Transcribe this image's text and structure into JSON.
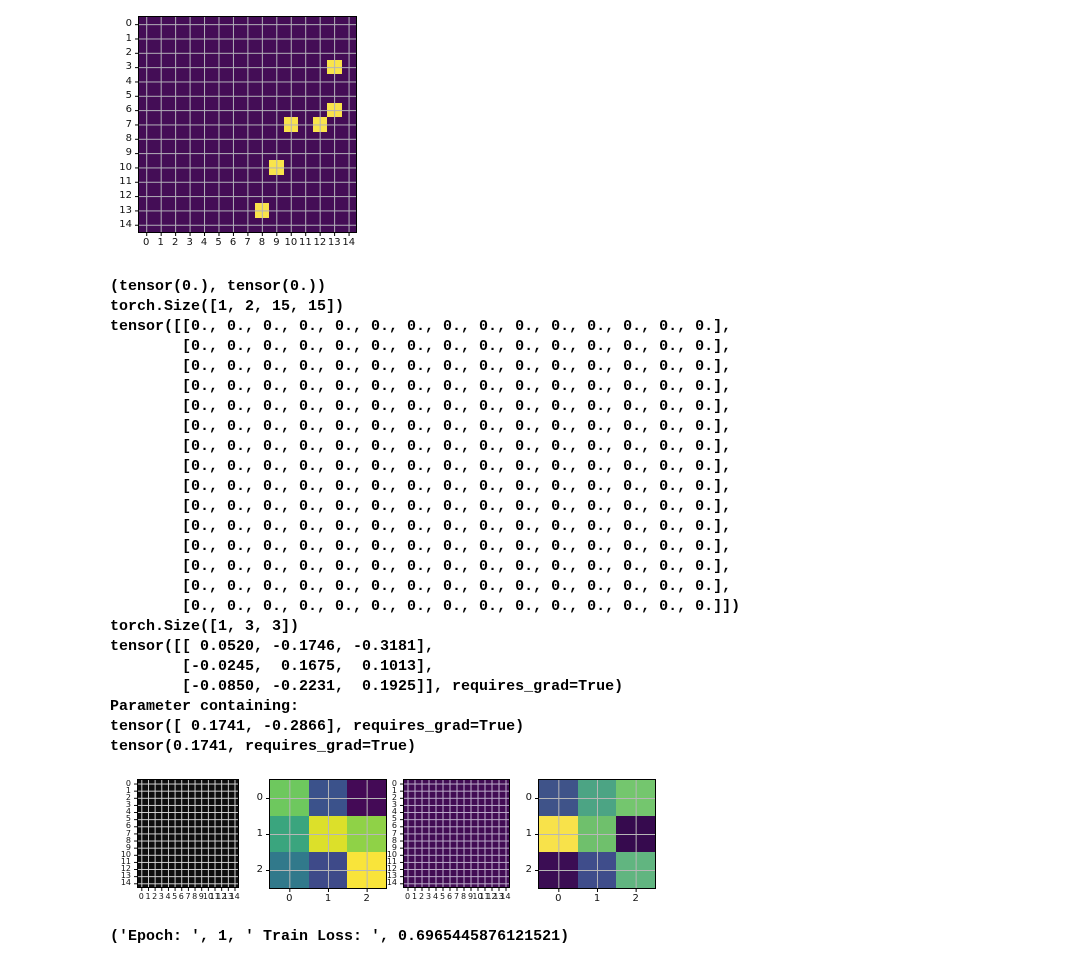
{
  "page": {
    "background": "#ffffff"
  },
  "console": {
    "lines": [
      "(tensor(0.), tensor(0.))",
      "torch.Size([1, 2, 15, 15])",
      "tensor([[0., 0., 0., 0., 0., 0., 0., 0., 0., 0., 0., 0., 0., 0., 0.],",
      "        [0., 0., 0., 0., 0., 0., 0., 0., 0., 0., 0., 0., 0., 0., 0.],",
      "        [0., 0., 0., 0., 0., 0., 0., 0., 0., 0., 0., 0., 0., 0., 0.],",
      "        [0., 0., 0., 0., 0., 0., 0., 0., 0., 0., 0., 0., 0., 0., 0.],",
      "        [0., 0., 0., 0., 0., 0., 0., 0., 0., 0., 0., 0., 0., 0., 0.],",
      "        [0., 0., 0., 0., 0., 0., 0., 0., 0., 0., 0., 0., 0., 0., 0.],",
      "        [0., 0., 0., 0., 0., 0., 0., 0., 0., 0., 0., 0., 0., 0., 0.],",
      "        [0., 0., 0., 0., 0., 0., 0., 0., 0., 0., 0., 0., 0., 0., 0.],",
      "        [0., 0., 0., 0., 0., 0., 0., 0., 0., 0., 0., 0., 0., 0., 0.],",
      "        [0., 0., 0., 0., 0., 0., 0., 0., 0., 0., 0., 0., 0., 0., 0.],",
      "        [0., 0., 0., 0., 0., 0., 0., 0., 0., 0., 0., 0., 0., 0., 0.],",
      "        [0., 0., 0., 0., 0., 0., 0., 0., 0., 0., 0., 0., 0., 0., 0.],",
      "        [0., 0., 0., 0., 0., 0., 0., 0., 0., 0., 0., 0., 0., 0., 0.],",
      "        [0., 0., 0., 0., 0., 0., 0., 0., 0., 0., 0., 0., 0., 0., 0.],",
      "        [0., 0., 0., 0., 0., 0., 0., 0., 0., 0., 0., 0., 0., 0., 0.]])",
      "torch.Size([1, 3, 3])",
      "tensor([[ 0.0520, -0.1746, -0.3181],",
      "        [-0.0245,  0.1675,  0.1013],",
      "        [-0.0850, -0.2231,  0.1925]], requires_grad=True)",
      "Parameter containing:",
      "tensor([ 0.1741, -0.2866], requires_grad=True)",
      "tensor(0.1741, requires_grad=True)"
    ]
  },
  "epoch_line": "('Epoch: ', 1, ' Train Loss: ', 0.6965445876121521)",
  "chart_data": [
    {
      "type": "heatmap",
      "name": "input-pattern-15x15",
      "rows": 15,
      "cols": 15,
      "x_ticks": [
        "0",
        "1",
        "2",
        "3",
        "4",
        "5",
        "6",
        "7",
        "8",
        "9",
        "10",
        "11",
        "12",
        "13",
        "14"
      ],
      "y_ticks": [
        "0",
        "1",
        "2",
        "3",
        "4",
        "5",
        "6",
        "7",
        "8",
        "9",
        "10",
        "11",
        "12",
        "13",
        "14"
      ],
      "uniform_color": "#440d56",
      "highlight_color": "#f9e44b",
      "highlight_cells": [
        [
          3,
          13
        ],
        [
          6,
          13
        ],
        [
          7,
          10
        ],
        [
          7,
          12
        ],
        [
          10,
          9
        ],
        [
          13,
          8
        ]
      ],
      "gridline_color": "#b4b2ba",
      "values_note": "all cells 0 except highlight_cells which are 1"
    },
    {
      "type": "heatmap",
      "name": "zeros-grid-15x15-black",
      "rows": 15,
      "cols": 15,
      "x_ticks": [
        "0",
        "1",
        "2",
        "3",
        "4",
        "5",
        "6",
        "7",
        "8",
        "9",
        "10",
        "11",
        "12",
        "13",
        "14"
      ],
      "y_ticks": [
        "0",
        "1",
        "2",
        "3",
        "4",
        "5",
        "6",
        "7",
        "8",
        "9",
        "10",
        "11",
        "12",
        "13",
        "14"
      ],
      "uniform_color": "#0d0d0d",
      "gridline_color": "#d6d6d6",
      "values_note": "all cells 0"
    },
    {
      "type": "heatmap",
      "name": "kernel-output-3x3-a",
      "rows": 3,
      "cols": 3,
      "x_ticks": [
        "0",
        "1",
        "2"
      ],
      "y_ticks": [
        "0",
        "1",
        "2"
      ],
      "cell_colors": [
        [
          "#6ec85e",
          "#3b528b",
          "#440a56"
        ],
        [
          "#3aa57e",
          "#dce02a",
          "#8fd247"
        ],
        [
          "#31798b",
          "#3e4a89",
          "#f9e43a"
        ]
      ],
      "gridline_color": "#b7b7b7"
    },
    {
      "type": "heatmap",
      "name": "zeros-grid-15x15-purple",
      "rows": 15,
      "cols": 15,
      "x_ticks": [
        "0",
        "1",
        "2",
        "3",
        "4",
        "5",
        "6",
        "7",
        "8",
        "9",
        "10",
        "11",
        "12",
        "13",
        "14"
      ],
      "y_ticks": [
        "0",
        "1",
        "2",
        "3",
        "4",
        "5",
        "6",
        "7",
        "8",
        "9",
        "10",
        "11",
        "12",
        "13",
        "14"
      ],
      "uniform_color": "#420c54",
      "gridline_color": "#c0b0ce",
      "values_note": "all cells 0"
    },
    {
      "type": "heatmap",
      "name": "kernel-output-3x3-b",
      "rows": 3,
      "cols": 3,
      "x_ticks": [
        "0",
        "1",
        "2"
      ],
      "y_ticks": [
        "0",
        "1",
        "2"
      ],
      "cell_colors": [
        [
          "#3f5389",
          "#4ca484",
          "#74c66e"
        ],
        [
          "#f8e24a",
          "#6fc06c",
          "#360a4e"
        ],
        [
          "#3b0d54",
          "#3f4d8b",
          "#61b580"
        ]
      ],
      "gridline_color": "#b7b7b7"
    }
  ]
}
